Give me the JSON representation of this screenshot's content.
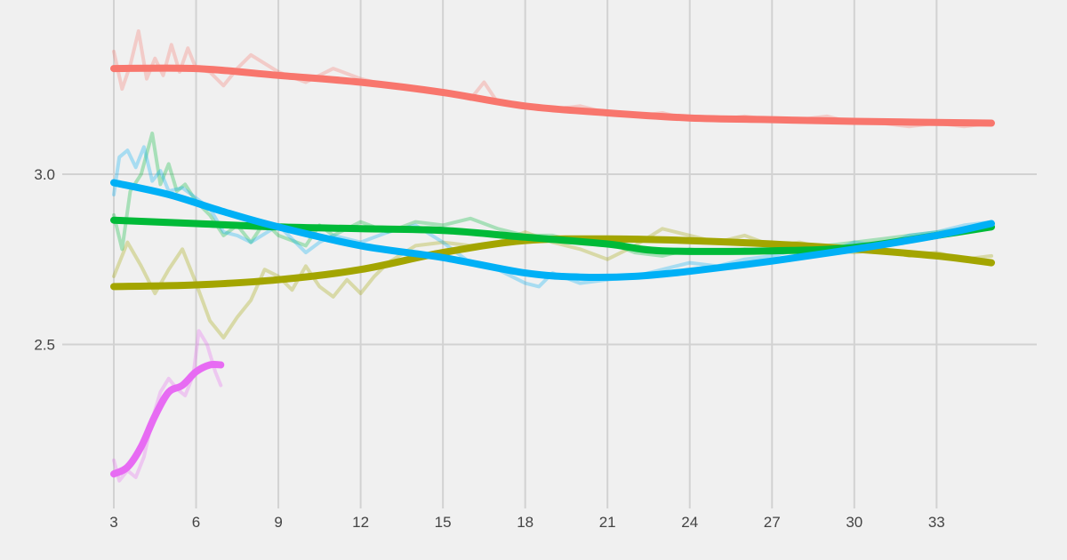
{
  "chart_data": {
    "type": "line",
    "title": "",
    "xlabel": "",
    "ylabel": "",
    "xlim": [
      3,
      35
    ],
    "ylim": [
      2.05,
      3.48
    ],
    "x_ticks": [
      3,
      6,
      9,
      12,
      15,
      18,
      21,
      24,
      27,
      30,
      33
    ],
    "x_tick_labels": [
      "3",
      "6",
      "9",
      "12",
      "15",
      "18",
      "21",
      "24",
      "27",
      "30",
      "33"
    ],
    "y_ticks": [
      2.5,
      3.0
    ],
    "y_tick_labels": [
      "2.5",
      "3.0"
    ],
    "grid": true,
    "legend": "none",
    "series": [
      {
        "name": "red",
        "color": "#f8766d",
        "smooth": [
          [
            3,
            3.31
          ],
          [
            6,
            3.31
          ],
          [
            9,
            3.29
          ],
          [
            12,
            3.27
          ],
          [
            15,
            3.24
          ],
          [
            18,
            3.2
          ],
          [
            21,
            3.18
          ],
          [
            24,
            3.165
          ],
          [
            27,
            3.16
          ],
          [
            30,
            3.155
          ],
          [
            35,
            3.15
          ]
        ],
        "raw": [
          [
            3,
            3.36
          ],
          [
            3.3,
            3.25
          ],
          [
            3.6,
            3.32
          ],
          [
            3.9,
            3.42
          ],
          [
            4.2,
            3.28
          ],
          [
            4.5,
            3.34
          ],
          [
            4.8,
            3.29
          ],
          [
            5.1,
            3.38
          ],
          [
            5.4,
            3.3
          ],
          [
            5.7,
            3.37
          ],
          [
            6,
            3.31
          ],
          [
            6.5,
            3.3
          ],
          [
            7,
            3.26
          ],
          [
            7.5,
            3.31
          ],
          [
            8,
            3.35
          ],
          [
            9,
            3.3
          ],
          [
            10,
            3.27
          ],
          [
            11,
            3.31
          ],
          [
            12,
            3.28
          ],
          [
            13,
            3.26
          ],
          [
            14,
            3.25
          ],
          [
            15,
            3.24
          ],
          [
            16,
            3.22
          ],
          [
            16.5,
            3.27
          ],
          [
            17,
            3.21
          ],
          [
            18,
            3.2
          ],
          [
            19,
            3.19
          ],
          [
            20,
            3.2
          ],
          [
            21,
            3.18
          ],
          [
            22,
            3.17
          ],
          [
            23,
            3.18
          ],
          [
            24,
            3.16
          ],
          [
            25,
            3.16
          ],
          [
            26,
            3.17
          ],
          [
            27,
            3.16
          ],
          [
            28,
            3.16
          ],
          [
            29,
            3.17
          ],
          [
            30,
            3.15
          ],
          [
            31,
            3.15
          ],
          [
            32,
            3.14
          ],
          [
            33,
            3.15
          ],
          [
            34,
            3.14
          ],
          [
            35,
            3.15
          ]
        ]
      },
      {
        "name": "olive",
        "color": "#a3a500",
        "smooth": [
          [
            3,
            2.67
          ],
          [
            6,
            2.675
          ],
          [
            9,
            2.69
          ],
          [
            12,
            2.72
          ],
          [
            15,
            2.77
          ],
          [
            18,
            2.805
          ],
          [
            21,
            2.81
          ],
          [
            24,
            2.805
          ],
          [
            27,
            2.795
          ],
          [
            30,
            2.78
          ],
          [
            33,
            2.76
          ],
          [
            35,
            2.74
          ]
        ],
        "raw": [
          [
            3,
            2.7
          ],
          [
            3.5,
            2.8
          ],
          [
            4,
            2.73
          ],
          [
            4.5,
            2.65
          ],
          [
            5,
            2.72
          ],
          [
            5.5,
            2.78
          ],
          [
            6,
            2.68
          ],
          [
            6.5,
            2.57
          ],
          [
            7,
            2.52
          ],
          [
            7.5,
            2.58
          ],
          [
            8,
            2.63
          ],
          [
            8.5,
            2.72
          ],
          [
            9,
            2.7
          ],
          [
            9.5,
            2.66
          ],
          [
            10,
            2.73
          ],
          [
            10.5,
            2.67
          ],
          [
            11,
            2.64
          ],
          [
            11.5,
            2.69
          ],
          [
            12,
            2.65
          ],
          [
            12.5,
            2.7
          ],
          [
            13,
            2.74
          ],
          [
            14,
            2.79
          ],
          [
            15,
            2.8
          ],
          [
            16,
            2.79
          ],
          [
            17,
            2.8
          ],
          [
            18,
            2.83
          ],
          [
            19,
            2.8
          ],
          [
            20,
            2.78
          ],
          [
            21,
            2.75
          ],
          [
            22,
            2.79
          ],
          [
            23,
            2.84
          ],
          [
            24,
            2.82
          ],
          [
            25,
            2.8
          ],
          [
            26,
            2.82
          ],
          [
            27,
            2.79
          ],
          [
            28,
            2.8
          ],
          [
            29,
            2.78
          ],
          [
            30,
            2.77
          ],
          [
            31,
            2.78
          ],
          [
            32,
            2.76
          ],
          [
            33,
            2.77
          ],
          [
            34,
            2.75
          ],
          [
            35,
            2.76
          ]
        ]
      },
      {
        "name": "green",
        "color": "#00ba38",
        "smooth": [
          [
            3,
            2.865
          ],
          [
            6,
            2.855
          ],
          [
            9,
            2.845
          ],
          [
            12,
            2.84
          ],
          [
            15,
            2.835
          ],
          [
            18,
            2.815
          ],
          [
            21,
            2.795
          ],
          [
            23,
            2.775
          ],
          [
            27,
            2.775
          ],
          [
            30,
            2.785
          ],
          [
            33,
            2.82
          ],
          [
            35,
            2.845
          ]
        ],
        "raw": [
          [
            3,
            2.88
          ],
          [
            3.3,
            2.78
          ],
          [
            3.6,
            2.95
          ],
          [
            4,
            3.0
          ],
          [
            4.4,
            3.12
          ],
          [
            4.7,
            2.97
          ],
          [
            5,
            3.03
          ],
          [
            5.3,
            2.95
          ],
          [
            5.6,
            2.97
          ],
          [
            6,
            2.92
          ],
          [
            6.5,
            2.88
          ],
          [
            7,
            2.82
          ],
          [
            7.5,
            2.85
          ],
          [
            8,
            2.8
          ],
          [
            8.5,
            2.86
          ],
          [
            9,
            2.82
          ],
          [
            10,
            2.79
          ],
          [
            10.5,
            2.85
          ],
          [
            11,
            2.82
          ],
          [
            12,
            2.86
          ],
          [
            13,
            2.83
          ],
          [
            14,
            2.86
          ],
          [
            15,
            2.85
          ],
          [
            16,
            2.87
          ],
          [
            17,
            2.84
          ],
          [
            18,
            2.82
          ],
          [
            19,
            2.82
          ],
          [
            20,
            2.8
          ],
          [
            21,
            2.8
          ],
          [
            22,
            2.77
          ],
          [
            23,
            2.76
          ],
          [
            24,
            2.78
          ],
          [
            25,
            2.77
          ],
          [
            26,
            2.78
          ],
          [
            27,
            2.77
          ],
          [
            28,
            2.78
          ],
          [
            29,
            2.79
          ],
          [
            30,
            2.8
          ],
          [
            31,
            2.81
          ],
          [
            32,
            2.82
          ],
          [
            33,
            2.83
          ],
          [
            34,
            2.84
          ],
          [
            35,
            2.85
          ]
        ]
      },
      {
        "name": "blue",
        "color": "#00b0f6",
        "smooth": [
          [
            3,
            2.975
          ],
          [
            5,
            2.94
          ],
          [
            7,
            2.89
          ],
          [
            9,
            2.845
          ],
          [
            12,
            2.79
          ],
          [
            15,
            2.755
          ],
          [
            18,
            2.71
          ],
          [
            20,
            2.698
          ],
          [
            22,
            2.7
          ],
          [
            24,
            2.715
          ],
          [
            27,
            2.745
          ],
          [
            30,
            2.78
          ],
          [
            33,
            2.82
          ],
          [
            35,
            2.855
          ]
        ],
        "raw": [
          [
            3,
            2.94
          ],
          [
            3.2,
            3.05
          ],
          [
            3.5,
            3.07
          ],
          [
            3.8,
            3.02
          ],
          [
            4.1,
            3.08
          ],
          [
            4.4,
            2.98
          ],
          [
            4.7,
            3.01
          ],
          [
            5,
            2.95
          ],
          [
            5.5,
            2.96
          ],
          [
            6,
            2.93
          ],
          [
            6.5,
            2.9
          ],
          [
            7,
            2.83
          ],
          [
            7.5,
            2.82
          ],
          [
            8,
            2.8
          ],
          [
            9,
            2.85
          ],
          [
            9.5,
            2.81
          ],
          [
            10,
            2.77
          ],
          [
            10.5,
            2.8
          ],
          [
            11,
            2.82
          ],
          [
            12,
            2.8
          ],
          [
            13,
            2.83
          ],
          [
            14,
            2.85
          ],
          [
            15,
            2.8
          ],
          [
            16,
            2.74
          ],
          [
            17,
            2.72
          ],
          [
            18,
            2.68
          ],
          [
            18.5,
            2.67
          ],
          [
            19,
            2.71
          ],
          [
            20,
            2.68
          ],
          [
            21,
            2.69
          ],
          [
            22,
            2.7
          ],
          [
            23,
            2.72
          ],
          [
            24,
            2.74
          ],
          [
            25,
            2.73
          ],
          [
            26,
            2.75
          ],
          [
            27,
            2.76
          ],
          [
            28,
            2.78
          ],
          [
            29,
            2.77
          ],
          [
            30,
            2.8
          ],
          [
            31,
            2.79
          ],
          [
            32,
            2.82
          ],
          [
            33,
            2.83
          ],
          [
            34,
            2.85
          ],
          [
            35,
            2.86
          ]
        ]
      },
      {
        "name": "magenta",
        "color": "#e76bf3",
        "smooth": [
          [
            3,
            2.12
          ],
          [
            3.5,
            2.14
          ],
          [
            4,
            2.2
          ],
          [
            4.5,
            2.29
          ],
          [
            5,
            2.36
          ],
          [
            5.5,
            2.38
          ],
          [
            6,
            2.42
          ],
          [
            6.5,
            2.44
          ],
          [
            6.9,
            2.44
          ]
        ],
        "raw": [
          [
            3,
            2.16
          ],
          [
            3.2,
            2.1
          ],
          [
            3.5,
            2.13
          ],
          [
            3.8,
            2.11
          ],
          [
            4.1,
            2.17
          ],
          [
            4.4,
            2.28
          ],
          [
            4.7,
            2.36
          ],
          [
            5,
            2.4
          ],
          [
            5.3,
            2.37
          ],
          [
            5.6,
            2.35
          ],
          [
            5.9,
            2.41
          ],
          [
            6.1,
            2.54
          ],
          [
            6.4,
            2.5
          ],
          [
            6.7,
            2.42
          ],
          [
            6.9,
            2.38
          ]
        ]
      }
    ]
  }
}
